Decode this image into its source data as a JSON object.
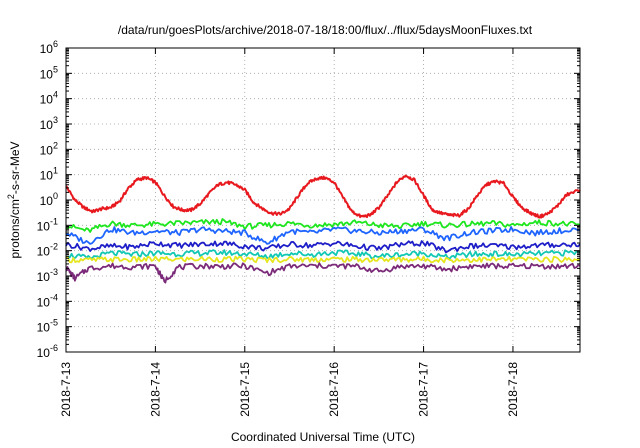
{
  "chart_data": {
    "type": "line",
    "title": "/data/run/goesPlots/archive/2018-07-18/18:00/flux/../flux/5daysMoonFluxes.txt",
    "xlabel": "Coordinated Universal Time (UTC)",
    "ylabel": {
      "prefix": "protons/cm",
      "sup": "2",
      "suffix": "-s-sr-MeV"
    },
    "yscale": "log",
    "ylim": [
      1e-06,
      1000000.0
    ],
    "y_tick_exponents": [
      -6,
      -5,
      -4,
      -3,
      -2,
      -1,
      0,
      1,
      2,
      3,
      4,
      5,
      6
    ],
    "y_tick_base": "10",
    "xlim": [
      0.0,
      5.75
    ],
    "x_ticks": [
      {
        "value": 0,
        "label": "2018-7-13"
      },
      {
        "value": 1,
        "label": "2018-7-14"
      },
      {
        "value": 2,
        "label": "2018-7-15"
      },
      {
        "value": 3,
        "label": "2018-7-16"
      },
      {
        "value": 4,
        "label": "2018-7-17"
      },
      {
        "value": 5,
        "label": "2018-7-18"
      }
    ],
    "x_unit": "days since 2018-07-13 00:00 UTC",
    "grid": true,
    "series": [
      {
        "color": "#e8191e",
        "x": [
          0.0,
          0.1,
          0.2,
          0.3,
          0.4,
          0.5,
          0.6,
          0.7,
          0.8,
          0.9,
          1.0,
          1.1,
          1.2,
          1.3,
          1.4,
          1.5,
          1.6,
          1.7,
          1.8,
          1.9,
          2.0,
          2.1,
          2.2,
          2.3,
          2.4,
          2.5,
          2.6,
          2.7,
          2.8,
          2.9,
          3.0,
          3.1,
          3.2,
          3.3,
          3.4,
          3.5,
          3.6,
          3.7,
          3.8,
          3.9,
          4.0,
          4.1,
          4.2,
          4.3,
          4.4,
          4.5,
          4.6,
          4.7,
          4.8,
          4.9,
          5.0,
          5.1,
          5.2,
          5.3,
          5.4,
          5.5,
          5.6,
          5.75
        ],
        "values": [
          3.5,
          1.0,
          0.5,
          0.35,
          0.45,
          0.5,
          0.9,
          3.0,
          6.5,
          7.5,
          5.0,
          1.5,
          0.55,
          0.4,
          0.4,
          0.7,
          1.8,
          4.0,
          5.0,
          4.0,
          2.5,
          0.8,
          0.45,
          0.3,
          0.28,
          0.45,
          1.5,
          4.5,
          7.0,
          7.5,
          5.0,
          1.2,
          0.35,
          0.22,
          0.25,
          0.5,
          1.5,
          5.0,
          9.5,
          6.0,
          1.5,
          0.4,
          0.3,
          0.25,
          0.25,
          0.45,
          1.5,
          4.0,
          5.5,
          4.5,
          1.3,
          0.5,
          0.3,
          0.22,
          0.3,
          0.6,
          1.6,
          2.5
        ]
      },
      {
        "color": "#1ee61e",
        "x": [
          0.0,
          0.25,
          0.5,
          0.75,
          1.0,
          1.25,
          1.5,
          1.75,
          2.0,
          2.25,
          2.5,
          2.75,
          3.0,
          3.25,
          3.5,
          3.75,
          4.0,
          4.25,
          4.5,
          4.75,
          5.0,
          5.25,
          5.5,
          5.75
        ],
        "values": [
          0.1,
          0.06,
          0.12,
          0.1,
          0.11,
          0.12,
          0.13,
          0.14,
          0.09,
          0.1,
          0.12,
          0.1,
          0.11,
          0.13,
          0.1,
          0.09,
          0.12,
          0.1,
          0.11,
          0.12,
          0.1,
          0.13,
          0.12,
          0.1
        ]
      },
      {
        "color": "#1e64ff",
        "x": [
          0.0,
          0.25,
          0.5,
          0.75,
          1.0,
          1.25,
          1.5,
          1.75,
          2.0,
          2.25,
          2.5,
          2.75,
          3.0,
          3.25,
          3.5,
          3.75,
          4.0,
          4.25,
          4.5,
          4.75,
          5.0,
          5.25,
          5.5,
          5.75
        ],
        "values": [
          0.05,
          0.02,
          0.07,
          0.05,
          0.06,
          0.05,
          0.07,
          0.06,
          0.05,
          0.02,
          0.06,
          0.05,
          0.07,
          0.06,
          0.05,
          0.06,
          0.07,
          0.03,
          0.05,
          0.06,
          0.07,
          0.05,
          0.06,
          0.07
        ]
      },
      {
        "color": "#1e1ec8",
        "x": [
          0.0,
          0.25,
          0.5,
          0.75,
          1.0,
          1.25,
          1.5,
          1.75,
          2.0,
          2.25,
          2.5,
          2.75,
          3.0,
          3.25,
          3.5,
          3.75,
          4.0,
          4.25,
          4.5,
          4.75,
          5.0,
          5.25,
          5.5,
          5.75
        ],
        "values": [
          0.018,
          0.012,
          0.015,
          0.014,
          0.02,
          0.016,
          0.018,
          0.02,
          0.015,
          0.012,
          0.018,
          0.016,
          0.02,
          0.015,
          0.012,
          0.018,
          0.02,
          0.01,
          0.015,
          0.016,
          0.014,
          0.016,
          0.017,
          0.018
        ]
      },
      {
        "color": "#12c8b4",
        "x": [
          0.0,
          0.25,
          0.5,
          0.75,
          1.0,
          1.25,
          1.5,
          1.75,
          2.0,
          2.25,
          2.5,
          2.75,
          3.0,
          3.25,
          3.5,
          3.75,
          4.0,
          4.25,
          4.5,
          4.75,
          5.0,
          5.25,
          5.5,
          5.75
        ],
        "values": [
          0.007,
          0.005,
          0.008,
          0.007,
          0.008,
          0.0075,
          0.008,
          0.0085,
          0.0075,
          0.006,
          0.008,
          0.007,
          0.0085,
          0.0075,
          0.006,
          0.007,
          0.008,
          0.0055,
          0.007,
          0.0075,
          0.007,
          0.0075,
          0.008,
          0.0085
        ]
      },
      {
        "color": "#e6e61e",
        "x": [
          0.0,
          0.25,
          0.5,
          0.75,
          1.0,
          1.25,
          1.5,
          1.75,
          2.0,
          2.25,
          2.5,
          2.75,
          3.0,
          3.25,
          3.5,
          3.75,
          4.0,
          4.25,
          4.5,
          4.75,
          5.0,
          5.25,
          5.5,
          5.75
        ],
        "values": [
          0.0045,
          0.0042,
          0.0045,
          0.0044,
          0.0046,
          0.0045,
          0.0047,
          0.0046,
          0.0045,
          0.0043,
          0.0046,
          0.0045,
          0.0046,
          0.0045,
          0.0044,
          0.0045,
          0.0046,
          0.0043,
          0.0044,
          0.0045,
          0.0045,
          0.0046,
          0.0045,
          0.0046
        ]
      },
      {
        "color": "#7a2a78",
        "x": [
          0.0,
          0.1,
          0.25,
          0.5,
          0.75,
          1.0,
          1.1,
          1.25,
          1.5,
          1.75,
          2.0,
          2.25,
          2.5,
          2.75,
          3.0,
          3.25,
          3.5,
          3.75,
          4.0,
          4.25,
          4.5,
          4.75,
          5.0,
          5.25,
          5.5,
          5.75
        ],
        "values": [
          0.0022,
          0.0008,
          0.002,
          0.0025,
          0.0023,
          0.0025,
          0.0006,
          0.0022,
          0.0025,
          0.0024,
          0.0025,
          0.0013,
          0.0024,
          0.0025,
          0.0025,
          0.0024,
          0.0015,
          0.0024,
          0.0025,
          0.0018,
          0.0024,
          0.0025,
          0.0024,
          0.0025,
          0.0024,
          0.0025
        ]
      }
    ]
  }
}
